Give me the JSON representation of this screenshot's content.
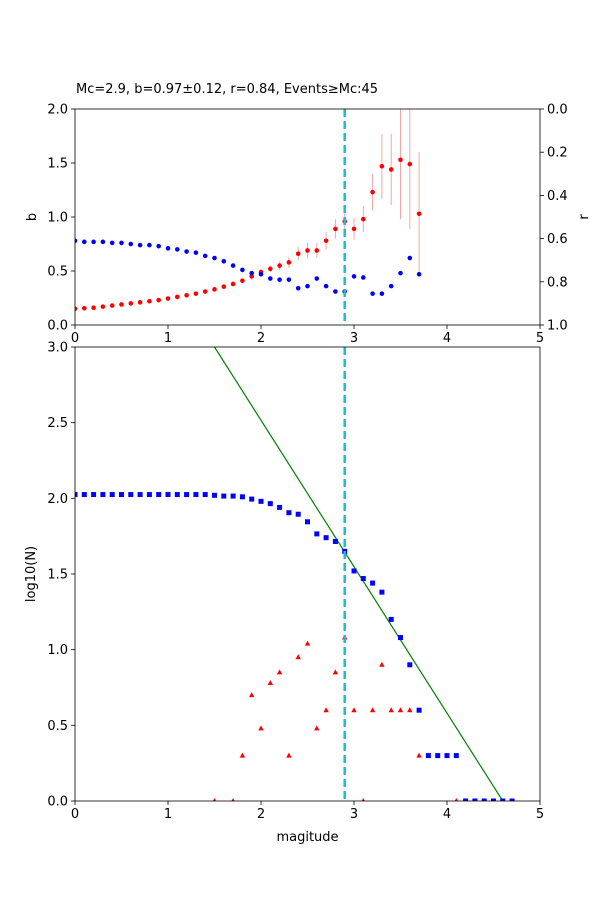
{
  "chart_data": [
    {
      "type": "scatter",
      "title": "Mc=2.9, b=0.97±0.12, r=0.84, Events≥Mc:45",
      "xlabel": "",
      "ylabel": "b",
      "ylabel_right": "r",
      "xlim": [
        0,
        5
      ],
      "ylim": [
        0,
        2
      ],
      "ylim_right": [
        1,
        0
      ],
      "x_ticks": [
        "0",
        "1",
        "2",
        "3",
        "4",
        "5"
      ],
      "y_ticks": [
        "0.0",
        "0.5",
        "1.0",
        "1.5",
        "2.0"
      ],
      "y_ticks_right": [
        "0.0",
        "0.2",
        "0.4",
        "0.6",
        "0.8",
        "1.0"
      ],
      "grid": false,
      "mc_line": {
        "x": 2.9,
        "color": "#17becf"
      },
      "series": [
        {
          "color": "#ff0000",
          "error_color": "#f4a6a6",
          "axis": "left",
          "points": [
            [
              0.0,
              0.15,
              0.01
            ],
            [
              0.1,
              0.155,
              0.01
            ],
            [
              0.2,
              0.16,
              0.01
            ],
            [
              0.3,
              0.17,
              0.01
            ],
            [
              0.4,
              0.18,
              0.01
            ],
            [
              0.5,
              0.19,
              0.01
            ],
            [
              0.6,
              0.2,
              0.01
            ],
            [
              0.7,
              0.21,
              0.01
            ],
            [
              0.8,
              0.22,
              0.01
            ],
            [
              0.9,
              0.23,
              0.01
            ],
            [
              1.0,
              0.245,
              0.01
            ],
            [
              1.1,
              0.26,
              0.01
            ],
            [
              1.2,
              0.275,
              0.01
            ],
            [
              1.3,
              0.29,
              0.01
            ],
            [
              1.4,
              0.31,
              0.01
            ],
            [
              1.5,
              0.33,
              0.01
            ],
            [
              1.6,
              0.355,
              0.02
            ],
            [
              1.7,
              0.38,
              0.02
            ],
            [
              1.8,
              0.41,
              0.02
            ],
            [
              1.9,
              0.45,
              0.03
            ],
            [
              2.0,
              0.49,
              0.03
            ],
            [
              2.1,
              0.52,
              0.03
            ],
            [
              2.2,
              0.55,
              0.04
            ],
            [
              2.3,
              0.58,
              0.05
            ],
            [
              2.4,
              0.66,
              0.06
            ],
            [
              2.5,
              0.69,
              0.07
            ],
            [
              2.6,
              0.69,
              0.07
            ],
            [
              2.7,
              0.78,
              0.08
            ],
            [
              2.8,
              0.89,
              0.09
            ],
            [
              2.9,
              0.96,
              0.1
            ],
            [
              3.0,
              0.89,
              0.1
            ],
            [
              3.1,
              0.98,
              0.12
            ],
            [
              3.2,
              1.23,
              0.17
            ],
            [
              3.3,
              1.47,
              0.3
            ],
            [
              3.4,
              1.44,
              0.33
            ],
            [
              3.5,
              1.53,
              0.55
            ],
            [
              3.6,
              1.49,
              0.6
            ],
            [
              3.7,
              1.03,
              0.57
            ]
          ]
        },
        {
          "color": "#0000ff",
          "axis": "right",
          "points": [
            [
              0.0,
              0.61
            ],
            [
              0.1,
              0.615
            ],
            [
              0.2,
              0.615
            ],
            [
              0.3,
              0.615
            ],
            [
              0.4,
              0.62
            ],
            [
              0.5,
              0.62
            ],
            [
              0.6,
              0.625
            ],
            [
              0.7,
              0.63
            ],
            [
              0.8,
              0.63
            ],
            [
              0.9,
              0.635
            ],
            [
              1.0,
              0.645
            ],
            [
              1.1,
              0.65
            ],
            [
              1.2,
              0.66
            ],
            [
              1.3,
              0.665
            ],
            [
              1.4,
              0.68
            ],
            [
              1.5,
              0.69
            ],
            [
              1.6,
              0.705
            ],
            [
              1.7,
              0.725
            ],
            [
              1.8,
              0.745
            ],
            [
              1.9,
              0.76
            ],
            [
              2.0,
              0.765
            ],
            [
              2.1,
              0.785
            ],
            [
              2.2,
              0.79
            ],
            [
              2.3,
              0.79
            ],
            [
              2.4,
              0.83
            ],
            [
              2.5,
              0.82
            ],
            [
              2.6,
              0.785
            ],
            [
              2.7,
              0.82
            ],
            [
              2.8,
              0.845
            ],
            [
              2.9,
              0.845
            ],
            [
              3.0,
              0.775
            ],
            [
              3.1,
              0.78
            ],
            [
              3.2,
              0.855
            ],
            [
              3.3,
              0.855
            ],
            [
              3.4,
              0.82
            ],
            [
              3.5,
              0.76
            ],
            [
              3.6,
              0.69
            ],
            [
              3.7,
              0.765
            ]
          ]
        }
      ]
    },
    {
      "type": "scatter",
      "title": "",
      "xlabel": "magitude",
      "ylabel": "log10(N)",
      "xlim": [
        0,
        5
      ],
      "ylim": [
        0,
        3
      ],
      "x_ticks": [
        "0",
        "1",
        "2",
        "3",
        "4",
        "5"
      ],
      "y_ticks": [
        "0.0",
        "0.5",
        "1.0",
        "1.5",
        "2.0",
        "2.5",
        "3.0"
      ],
      "grid": false,
      "mc_line": {
        "x": 2.9,
        "color": "#17becf"
      },
      "fit_line": {
        "color": "#008000",
        "points": [
          [
            1.5,
            3.0
          ],
          [
            4.6,
            0.0
          ]
        ]
      },
      "series": [
        {
          "marker": "square",
          "color": "#0000ff",
          "points": [
            [
              0.0,
              2.025
            ],
            [
              0.1,
              2.025
            ],
            [
              0.2,
              2.025
            ],
            [
              0.3,
              2.025
            ],
            [
              0.4,
              2.025
            ],
            [
              0.5,
              2.025
            ],
            [
              0.6,
              2.025
            ],
            [
              0.7,
              2.025
            ],
            [
              0.8,
              2.025
            ],
            [
              0.9,
              2.025
            ],
            [
              1.0,
              2.025
            ],
            [
              1.1,
              2.025
            ],
            [
              1.2,
              2.025
            ],
            [
              1.3,
              2.025
            ],
            [
              1.4,
              2.025
            ],
            [
              1.5,
              2.02
            ],
            [
              1.6,
              2.015
            ],
            [
              1.7,
              2.015
            ],
            [
              1.8,
              2.01
            ],
            [
              1.9,
              1.995
            ],
            [
              2.0,
              1.98
            ],
            [
              2.1,
              1.965
            ],
            [
              2.2,
              1.94
            ],
            [
              2.3,
              1.905
            ],
            [
              2.4,
              1.895
            ],
            [
              2.5,
              1.845
            ],
            [
              2.6,
              1.765
            ],
            [
              2.7,
              1.74
            ],
            [
              2.8,
              1.715
            ],
            [
              2.9,
              1.65
            ],
            [
              3.0,
              1.52
            ],
            [
              3.1,
              1.47
            ],
            [
              3.2,
              1.44
            ],
            [
              3.3,
              1.38
            ],
            [
              3.4,
              1.2
            ],
            [
              3.5,
              1.08
            ],
            [
              3.6,
              0.9
            ],
            [
              3.7,
              0.6
            ],
            [
              3.8,
              0.3
            ],
            [
              3.9,
              0.3
            ],
            [
              4.0,
              0.3
            ],
            [
              4.1,
              0.3
            ],
            [
              4.2,
              0.0
            ],
            [
              4.3,
              0.0
            ],
            [
              4.4,
              0.0
            ],
            [
              4.5,
              0.0
            ],
            [
              4.6,
              0.0
            ],
            [
              4.7,
              0.0
            ]
          ]
        },
        {
          "marker": "triangle",
          "color": "#ff0000",
          "points": [
            [
              1.5,
              0.0
            ],
            [
              1.7,
              0.0
            ],
            [
              1.8,
              0.3
            ],
            [
              1.9,
              0.7
            ],
            [
              2.0,
              0.48
            ],
            [
              2.1,
              0.78
            ],
            [
              2.2,
              0.85
            ],
            [
              2.3,
              0.3
            ],
            [
              2.4,
              0.95
            ],
            [
              2.5,
              1.04
            ],
            [
              2.6,
              0.48
            ],
            [
              2.7,
              0.6
            ],
            [
              2.8,
              0.85
            ],
            [
              2.9,
              1.08
            ],
            [
              3.0,
              0.6
            ],
            [
              3.1,
              0.0
            ],
            [
              3.2,
              0.6
            ],
            [
              3.3,
              0.9
            ],
            [
              3.4,
              0.6
            ],
            [
              3.5,
              0.6
            ],
            [
              3.6,
              0.6
            ],
            [
              3.7,
              0.3
            ],
            [
              4.1,
              0.0
            ]
          ]
        }
      ]
    }
  ]
}
